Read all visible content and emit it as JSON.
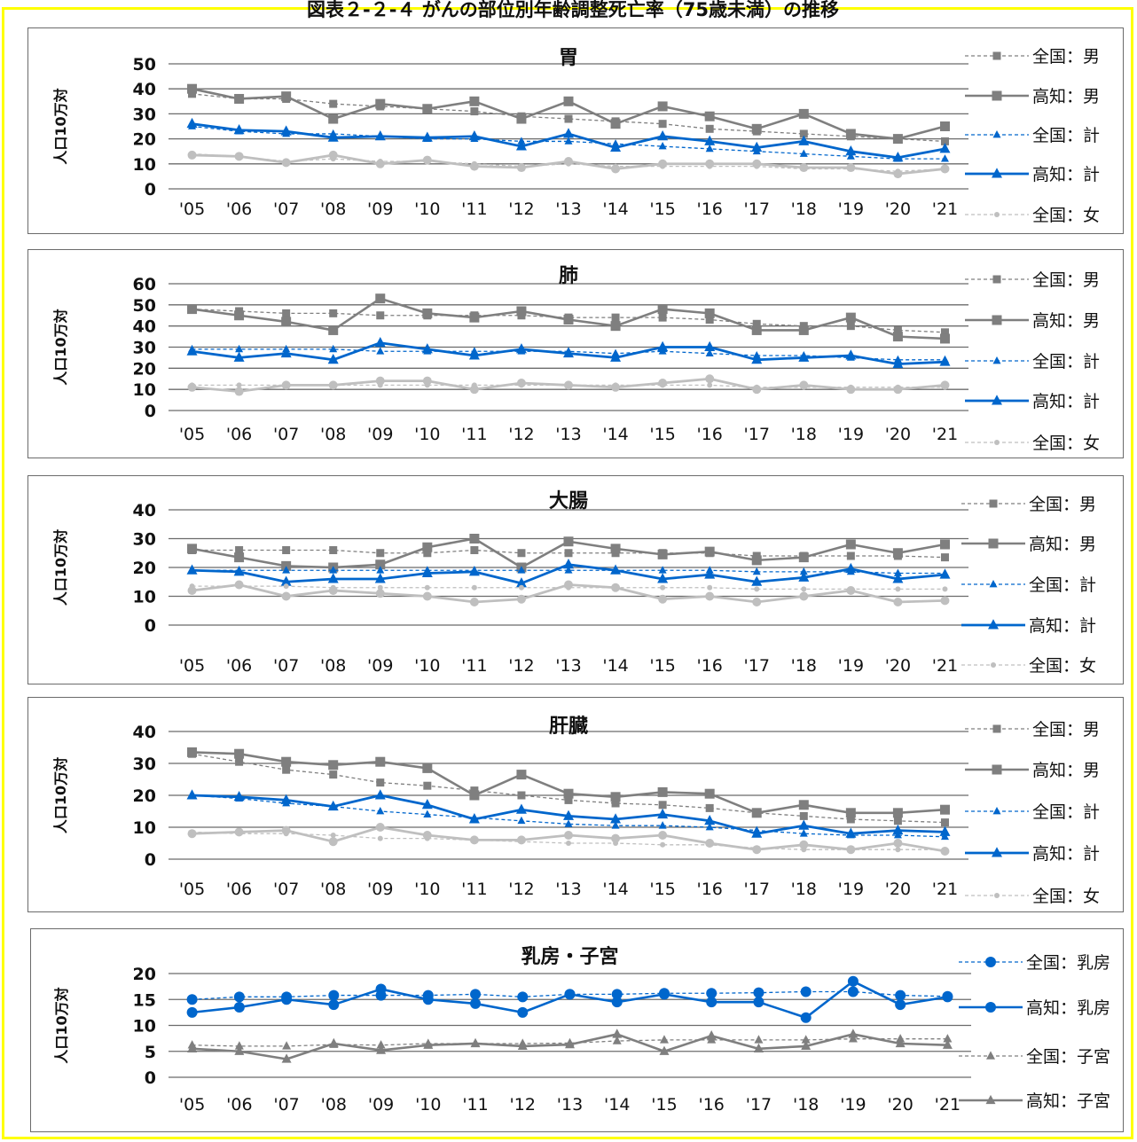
{
  "page_title": "図表２-２-４ がんの部位別年齢調整死亡率（75歳未満）の推移",
  "legend_labels": {
    "national_male": "全国：男",
    "kochi_male": "高知：男",
    "national_total": "全国：計",
    "kochi_total": "高知：計",
    "national_female": "全国：女",
    "national_breast": "全国：乳房",
    "kochi_breast": "高知：乳房",
    "national_uterus": "全国：子宮",
    "kochi_uterus": "高知：子宮"
  },
  "colors": {
    "gray_dark": "#7f7f7f",
    "gray_light": "#bfbfbf",
    "blue": "#0066cc",
    "frame": "#ffff00"
  },
  "chart_data": [
    {
      "type": "line",
      "title": "胃",
      "ylabel": "人口10万対",
      "categories": [
        "'05",
        "'06",
        "'07",
        "'08",
        "'09",
        "'10",
        "'11",
        "'12",
        "'13",
        "'14",
        "'15",
        "'16",
        "'17",
        "'18",
        "'19",
        "'20",
        "'21"
      ],
      "ylim": [
        0,
        50
      ],
      "yticks": [
        0,
        10,
        20,
        30,
        40,
        50
      ],
      "series": [
        {
          "name": "全国：男",
          "key": "national_male",
          "values": [
            38,
            36,
            36,
            34,
            33,
            32,
            31,
            29,
            28,
            27,
            26,
            24,
            23,
            22,
            21,
            20,
            19
          ]
        },
        {
          "name": "高知：男",
          "key": "kochi_male",
          "values": [
            40,
            36,
            37,
            28,
            34,
            32,
            35,
            28,
            35,
            26,
            33,
            29,
            24,
            30,
            22,
            20,
            25
          ]
        },
        {
          "name": "全国：計",
          "key": "national_total",
          "values": [
            25,
            23,
            22,
            22,
            21,
            20,
            20,
            19,
            19,
            18,
            17,
            16,
            15,
            14,
            13,
            12,
            12
          ]
        },
        {
          "name": "高知：計",
          "key": "kochi_total",
          "values": [
            26,
            23.5,
            23,
            20.5,
            21,
            20.5,
            21,
            17,
            22,
            16.5,
            21,
            19,
            16.5,
            19,
            15,
            12.5,
            16
          ]
        },
        {
          "name": "全国：女",
          "key": "national_female",
          "values": [
            14,
            13,
            11,
            12,
            11,
            11,
            10,
            9,
            10,
            9,
            9,
            9,
            9,
            8,
            8,
            7,
            8
          ]
        },
        {
          "name": "",
          "key": "kochi_female",
          "values": [
            13.5,
            13,
            10.5,
            13.5,
            10,
            11.5,
            9,
            8.5,
            11,
            8,
            10,
            10,
            10,
            8.5,
            8.5,
            6,
            8
          ]
        }
      ]
    },
    {
      "type": "line",
      "title": "肺",
      "ylabel": "人口10万対",
      "categories": [
        "'05",
        "'06",
        "'07",
        "'08",
        "'09",
        "'10",
        "'11",
        "'12",
        "'13",
        "'14",
        "'15",
        "'16",
        "'17",
        "'18",
        "'19",
        "'20",
        "'21"
      ],
      "ylim": [
        0,
        60
      ],
      "yticks": [
        0,
        10,
        20,
        30,
        40,
        50,
        60
      ],
      "series": [
        {
          "name": "全国：男",
          "key": "national_male",
          "values": [
            48,
            47,
            46,
            46,
            45,
            45,
            45,
            45,
            44,
            44,
            44,
            43,
            41,
            40,
            40,
            38,
            37
          ]
        },
        {
          "name": "高知：男",
          "key": "kochi_male",
          "values": [
            48,
            45,
            42,
            38,
            53,
            46,
            44,
            47,
            43,
            40,
            48,
            46,
            38,
            38,
            44,
            35,
            34
          ]
        },
        {
          "name": "全国：計",
          "key": "national_total",
          "values": [
            29,
            29,
            29,
            29,
            28,
            28,
            28,
            28,
            28,
            27,
            28,
            27,
            26,
            26,
            25,
            24,
            24
          ]
        },
        {
          "name": "高知：計",
          "key": "kochi_total",
          "values": [
            28,
            25,
            27,
            24,
            32,
            29,
            26,
            29,
            27,
            25,
            30,
            30,
            24,
            25,
            26,
            22,
            23
          ]
        },
        {
          "name": "全国：女",
          "key": "national_female",
          "values": [
            12,
            12,
            12,
            12,
            12,
            12,
            12,
            12,
            12,
            12,
            12,
            12,
            11,
            11,
            11,
            11,
            11
          ]
        },
        {
          "name": "",
          "key": "kochi_female",
          "values": [
            11,
            9,
            12,
            12,
            14,
            14,
            10,
            13,
            12,
            11,
            13,
            15,
            10,
            12,
            10,
            10,
            12
          ]
        }
      ]
    },
    {
      "type": "line",
      "title": "大腸",
      "ylabel": "人口10万対",
      "categories": [
        "'05",
        "'06",
        "'07",
        "'08",
        "'09",
        "'10",
        "'11",
        "'12",
        "'13",
        "'14",
        "'15",
        "'16",
        "'17",
        "'18",
        "'19",
        "'20",
        "'21"
      ],
      "ylim": [
        0,
        40
      ],
      "yticks": [
        0,
        10,
        20,
        30,
        40
      ],
      "series": [
        {
          "name": "全国：男",
          "key": "national_male",
          "values": [
            26,
            26,
            26,
            26,
            25,
            25,
            26,
            25,
            25,
            25,
            25,
            25,
            24,
            24,
            24,
            24,
            23.5
          ]
        },
        {
          "name": "高知：男",
          "key": "kochi_male",
          "values": [
            26.5,
            23.5,
            20.5,
            20,
            21,
            27,
            30,
            20,
            29,
            26.5,
            24.5,
            25.5,
            22.5,
            23.5,
            28,
            25,
            28
          ]
        },
        {
          "name": "全国：計",
          "key": "national_total",
          "values": [
            19,
            19,
            19,
            19,
            19,
            19,
            19,
            19,
            19,
            19,
            19,
            19,
            18.5,
            18.5,
            18.5,
            18,
            18
          ]
        },
        {
          "name": "高知：計",
          "key": "kochi_total",
          "values": [
            19,
            18.5,
            15,
            16,
            16,
            18,
            18.5,
            14.5,
            21,
            19,
            16,
            17.5,
            15,
            16.5,
            19.5,
            16,
            17.5
          ]
        },
        {
          "name": "全国：女",
          "key": "national_female",
          "values": [
            13.5,
            13.5,
            13.5,
            13,
            13,
            13,
            13,
            13,
            13,
            13,
            13,
            13,
            12.5,
            12.5,
            12.5,
            12.5,
            12.5
          ]
        },
        {
          "name": "",
          "key": "kochi_female",
          "values": [
            12,
            14,
            10,
            12,
            11,
            10,
            8,
            9,
            14,
            13,
            9,
            10,
            8,
            10,
            12,
            8,
            8.5
          ]
        }
      ]
    },
    {
      "type": "line",
      "title": "肝臓",
      "ylabel": "人口10万対",
      "categories": [
        "'05",
        "'06",
        "'07",
        "'08",
        "'09",
        "'10",
        "'11",
        "'12",
        "'13",
        "'14",
        "'15",
        "'16",
        "'17",
        "'18",
        "'19",
        "'20",
        "'21"
      ],
      "ylim": [
        0,
        40
      ],
      "yticks": [
        0,
        10,
        20,
        30,
        40
      ],
      "series": [
        {
          "name": "全国：男",
          "key": "national_male",
          "values": [
            33,
            30.5,
            28,
            26.5,
            24,
            23,
            21.5,
            20,
            18.5,
            17.5,
            17,
            16,
            14.5,
            13.5,
            12.5,
            12,
            11.5
          ]
        },
        {
          "name": "高知：男",
          "key": "kochi_male",
          "values": [
            33.5,
            33,
            30.5,
            29.5,
            30.5,
            28.5,
            20,
            26.5,
            20.5,
            19.5,
            21,
            20.5,
            14.5,
            17,
            14.5,
            14.5,
            15.5
          ]
        },
        {
          "name": "全国：計",
          "key": "national_total",
          "values": [
            20,
            19,
            17.5,
            16.5,
            15,
            14,
            13,
            12,
            11,
            10.5,
            10.5,
            10,
            9,
            8,
            7.5,
            7.5,
            7
          ]
        },
        {
          "name": "高知：計",
          "key": "kochi_total",
          "values": [
            20,
            19.5,
            18.5,
            16.5,
            20,
            17,
            12.5,
            15.5,
            13.5,
            12.5,
            14,
            12,
            8,
            10.5,
            8,
            9,
            8.5
          ]
        },
        {
          "name": "全国：女",
          "key": "national_female",
          "values": [
            8.5,
            8,
            8,
            7.5,
            6.5,
            6.5,
            6,
            5.5,
            5,
            5,
            4.5,
            4.5,
            3.5,
            3,
            3,
            3,
            3
          ]
        },
        {
          "name": "",
          "key": "kochi_female",
          "values": [
            8,
            8.5,
            9,
            5.5,
            10,
            7.5,
            6,
            6,
            7.5,
            6.5,
            7.5,
            5,
            3,
            4.5,
            3,
            5,
            2.5
          ]
        }
      ]
    },
    {
      "type": "line",
      "title": "乳房・子宮",
      "ylabel": "人口10万対",
      "categories": [
        "'05",
        "'06",
        "'07",
        "'08",
        "'09",
        "'10",
        "'11",
        "'12",
        "'13",
        "'14",
        "'15",
        "'16",
        "'17",
        "'18",
        "'19",
        "'20",
        "'21"
      ],
      "ylim": [
        0,
        20
      ],
      "yticks": [
        0,
        5,
        10,
        15,
        20
      ],
      "series": [
        {
          "name": "全国：乳房",
          "key": "national_breast",
          "values": [
            15,
            15.5,
            15.5,
            15.8,
            15.8,
            15.8,
            16,
            15.5,
            16,
            16,
            16.2,
            16.2,
            16.3,
            16.5,
            16.5,
            15.8,
            15.6
          ]
        },
        {
          "name": "高知：乳房",
          "key": "kochi_breast",
          "values": [
            12.5,
            13.5,
            15,
            14,
            17,
            15,
            14.2,
            12.5,
            16,
            14.5,
            16,
            14.5,
            14.5,
            11.5,
            18.5,
            14,
            15.5
          ]
        },
        {
          "name": "全国：子宮",
          "key": "national_uterus",
          "values": [
            6.2,
            6,
            6,
            6.3,
            6.2,
            6.5,
            6.5,
            6.5,
            6.6,
            7,
            7.2,
            7.2,
            7.2,
            7.2,
            7.4,
            7.4,
            7.4
          ]
        },
        {
          "name": "高知：子宮",
          "key": "kochi_uterus",
          "values": [
            5.5,
            5,
            3.5,
            6.5,
            5.2,
            6.2,
            6.5,
            6,
            6.3,
            8.3,
            5,
            8,
            5.5,
            6,
            8.3,
            6.5,
            6.2
          ]
        }
      ]
    }
  ]
}
